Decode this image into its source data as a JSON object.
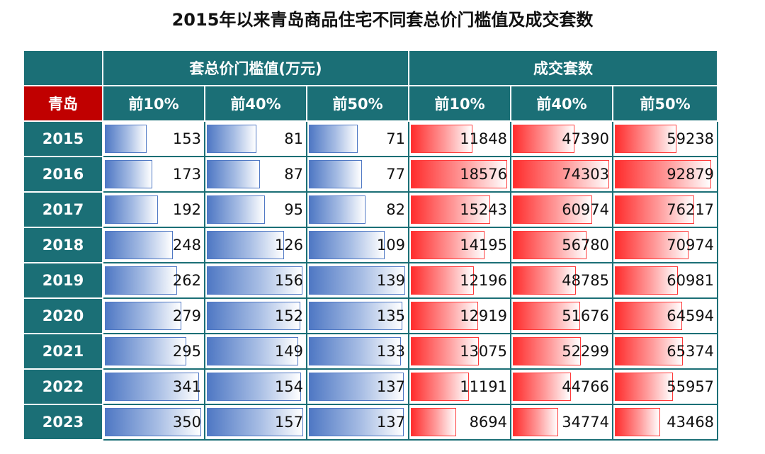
{
  "title": "2015年以来青岛商品住宅不同套总价门槛值及成交套数",
  "header": {
    "group1": "套总价门槛值(万元)",
    "group2": "成交套数",
    "city": "青岛",
    "sub": [
      "前10%",
      "前40%",
      "前50%",
      "前10%",
      "前40%",
      "前50%"
    ]
  },
  "colors": {
    "header_bg": "#1b6f76",
    "city_bg": "#c00000",
    "price_bar": "#4f78c4",
    "volume_bar": "#ff2d2d"
  },
  "chart_data": {
    "type": "table",
    "title": "2015年以来青岛商品住宅不同套总价门槛值及成交套数",
    "rows": [
      "2015",
      "2016",
      "2017",
      "2018",
      "2019",
      "2020",
      "2021",
      "2022",
      "2023"
    ],
    "groups": [
      {
        "name": "套总价门槛值(万元)",
        "series": [
          {
            "name": "前10%",
            "values": [
              153,
              173,
              192,
              248,
              262,
              279,
              295,
              341,
              350
            ]
          },
          {
            "name": "前40%",
            "values": [
              81,
              87,
              95,
              126,
              156,
              152,
              149,
              154,
              157
            ]
          },
          {
            "name": "前50%",
            "values": [
              71,
              77,
              82,
              109,
              139,
              135,
              133,
              137,
              137
            ]
          }
        ]
      },
      {
        "name": "成交套数",
        "series": [
          {
            "name": "前10%",
            "values": [
              11848,
              18576,
              15243,
              14195,
              12196,
              12919,
              13075,
              11191,
              8694
            ]
          },
          {
            "name": "前40%",
            "values": [
              47390,
              74303,
              60974,
              56780,
              48785,
              51676,
              52299,
              44766,
              34774
            ]
          },
          {
            "name": "前50%",
            "values": [
              59238,
              92879,
              76217,
              70974,
              60981,
              64594,
              65374,
              55957,
              43468
            ]
          }
        ]
      }
    ]
  }
}
